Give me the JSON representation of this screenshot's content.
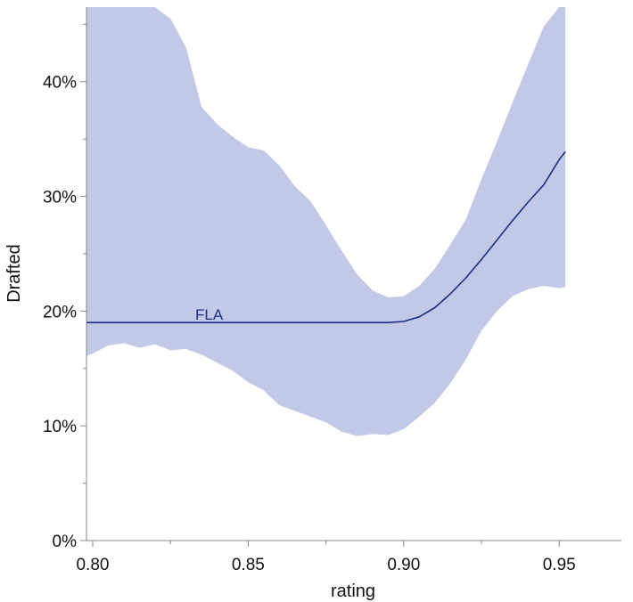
{
  "chart_data": {
    "type": "line",
    "xlabel": "rating",
    "ylabel": "Drafted",
    "xlim": [
      0.798,
      0.97
    ],
    "ylim": [
      0,
      0.465
    ],
    "x_ticks": [
      0.8,
      0.85,
      0.9,
      0.95
    ],
    "x_tick_labels": [
      "0.80",
      "0.85",
      "0.90",
      "0.95"
    ],
    "x_minor_ticks": [
      0.825,
      0.875,
      0.925
    ],
    "y_ticks": [
      0,
      0.1,
      0.2,
      0.3,
      0.4
    ],
    "y_tick_labels": [
      "0%",
      "10%",
      "20%",
      "30%",
      "40%"
    ],
    "y_minor_ticks": [
      0.05,
      0.15,
      0.25,
      0.35,
      0.45
    ],
    "grid": false,
    "colors": {
      "line": "#1a2e8a",
      "band": "#c2c9e6",
      "label": "#1a2e8a",
      "axis": "#888888"
    },
    "series": [
      {
        "name": "FLA",
        "x": [
          0.798,
          0.82,
          0.84,
          0.86,
          0.88,
          0.895,
          0.9,
          0.905,
          0.91,
          0.915,
          0.92,
          0.925,
          0.93,
          0.935,
          0.94,
          0.945,
          0.95,
          0.952
        ],
        "y": [
          0.19,
          0.19,
          0.19,
          0.19,
          0.19,
          0.19,
          0.191,
          0.195,
          0.203,
          0.215,
          0.229,
          0.245,
          0.262,
          0.279,
          0.295,
          0.31,
          0.332,
          0.339
        ],
        "band_x": [
          0.798,
          0.8,
          0.805,
          0.81,
          0.815,
          0.82,
          0.825,
          0.83,
          0.835,
          0.84,
          0.845,
          0.85,
          0.855,
          0.86,
          0.865,
          0.87,
          0.875,
          0.88,
          0.885,
          0.89,
          0.895,
          0.9,
          0.905,
          0.91,
          0.915,
          0.92,
          0.925,
          0.93,
          0.935,
          0.94,
          0.945,
          0.95,
          0.952
        ],
        "band_lower": [
          0.161,
          0.163,
          0.17,
          0.172,
          0.168,
          0.171,
          0.166,
          0.167,
          0.162,
          0.155,
          0.148,
          0.138,
          0.131,
          0.118,
          0.113,
          0.108,
          0.103,
          0.095,
          0.091,
          0.093,
          0.092,
          0.097,
          0.108,
          0.12,
          0.137,
          0.158,
          0.183,
          0.2,
          0.213,
          0.219,
          0.222,
          0.22,
          0.221
        ],
        "band_upper": [
          0.465,
          0.465,
          0.465,
          0.465,
          0.465,
          0.465,
          0.455,
          0.43,
          0.378,
          0.363,
          0.352,
          0.343,
          0.34,
          0.327,
          0.309,
          0.296,
          0.275,
          0.253,
          0.232,
          0.218,
          0.212,
          0.213,
          0.222,
          0.237,
          0.258,
          0.28,
          0.315,
          0.348,
          0.382,
          0.415,
          0.448,
          0.465,
          0.465
        ]
      }
    ]
  }
}
